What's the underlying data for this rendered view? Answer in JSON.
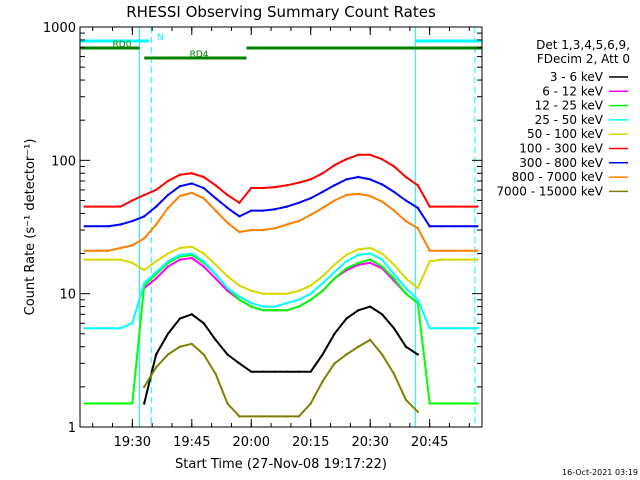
{
  "chart_data": {
    "type": "line",
    "title": "RHESSI Observing Summary Count Rates",
    "xlabel": "Start Time (27-Nov-08 19:17:22)",
    "ylabel": "Count Rate (s⁻¹ detector⁻¹)",
    "yscale": "log",
    "ylim": [
      1,
      1000
    ],
    "xlim_minutes": [
      19.28,
      20.97
    ],
    "x_ticks": [
      "19:30",
      "19:45",
      "20:00",
      "20:15",
      "20:30",
      "20:45"
    ],
    "x_tick_values": [
      19.5,
      19.75,
      20.0,
      20.25,
      20.5,
      20.75
    ],
    "y_ticks": [
      "1",
      "10",
      "100",
      "1000"
    ],
    "y_tick_values": [
      1,
      10,
      100,
      1000
    ],
    "legend_position": "right",
    "legend_header": [
      "Det 1,3,4,5,6,9,",
      "FDecim 2, Att 0"
    ],
    "footer_date": "16-Oct-2021 03:19",
    "grid": false,
    "x": [
      19.3,
      19.35,
      19.4,
      19.45,
      19.5,
      19.55,
      19.6,
      19.65,
      19.7,
      19.75,
      19.8,
      19.85,
      19.9,
      19.95,
      20.0,
      20.05,
      20.1,
      20.15,
      20.2,
      20.25,
      20.3,
      20.35,
      20.4,
      20.45,
      20.5,
      20.55,
      20.6,
      20.65,
      20.7,
      20.75,
      20.8,
      20.85,
      20.9,
      20.95
    ],
    "series": [
      {
        "name": "3 - 6 keV",
        "color": "#000000",
        "values": [
          null,
          null,
          null,
          null,
          null,
          1.5,
          3.5,
          5,
          6.5,
          7,
          6,
          4.5,
          3.5,
          3,
          2.6,
          2.6,
          2.6,
          2.6,
          2.6,
          2.6,
          3.5,
          5,
          6.5,
          7.5,
          8,
          7,
          5.5,
          4,
          3.5,
          null,
          null,
          null,
          null,
          null
        ]
      },
      {
        "name": "6 - 12 keV",
        "color": "#ff00ff",
        "values": [
          null,
          null,
          null,
          null,
          null,
          11,
          13,
          16,
          18,
          18.5,
          16,
          13,
          10.5,
          9,
          8,
          7.5,
          7.5,
          7.5,
          8,
          9,
          10.5,
          13,
          15,
          16.5,
          17,
          15.5,
          12.5,
          10,
          8.5,
          null,
          null,
          null,
          null,
          null
        ]
      },
      {
        "name": "12 - 25 keV",
        "color": "#00ff00",
        "values": [
          1.5,
          1.5,
          1.5,
          1.5,
          1.5,
          11.5,
          14,
          17,
          19,
          19.5,
          17,
          14,
          11,
          9,
          8,
          7.5,
          7.5,
          7.5,
          8,
          9,
          10.5,
          13,
          15.5,
          17,
          18,
          16,
          13,
          10,
          8.5,
          1.5,
          1.5,
          1.5,
          1.5,
          1.5
        ]
      },
      {
        "name": "25 - 50 keV",
        "color": "#00ffff",
        "values": [
          5.5,
          5.5,
          5.5,
          5.5,
          6,
          12,
          14.5,
          17.5,
          19.5,
          20,
          17.5,
          14,
          11,
          9.5,
          8.5,
          8,
          8,
          8.5,
          9,
          10,
          12,
          14.5,
          17.5,
          19.5,
          20,
          18,
          14,
          11,
          9,
          5.5,
          5.5,
          5.5,
          5.5,
          5.5
        ]
      },
      {
        "name": "50 - 100 keV",
        "color": "#d8d800",
        "values": [
          18,
          18,
          18,
          18,
          17,
          15,
          17.5,
          20,
          22,
          22.5,
          20,
          16.5,
          13.5,
          11.5,
          10.5,
          10,
          10,
          10,
          10.5,
          11.5,
          13.5,
          16.5,
          19.5,
          21.5,
          22,
          20,
          16.5,
          13,
          11,
          17.5,
          18,
          18,
          18,
          18
        ]
      },
      {
        "name": "100 - 300 keV",
        "color": "#ff0000",
        "values": [
          45,
          45,
          45,
          45,
          50,
          55,
          60,
          70,
          78,
          80,
          75,
          65,
          55,
          48,
          62,
          62,
          63,
          65,
          68,
          72,
          80,
          92,
          102,
          110,
          110,
          102,
          90,
          75,
          65,
          45,
          45,
          45,
          45,
          45
        ]
      },
      {
        "name": "300 - 800 keV",
        "color": "#0000ff",
        "values": [
          32,
          32,
          32,
          33,
          35,
          38,
          45,
          55,
          64,
          67,
          62,
          52,
          44,
          38,
          42,
          42,
          43,
          45,
          48,
          52,
          58,
          65,
          72,
          75,
          72,
          66,
          58,
          50,
          44,
          32,
          32,
          32,
          32,
          32
        ]
      },
      {
        "name": "800 - 7000 keV",
        "color": "#ff8000",
        "values": [
          21,
          21,
          21,
          22,
          23,
          26,
          33,
          44,
          54,
          57,
          52,
          42,
          34,
          29,
          30,
          30,
          31,
          33,
          35,
          39,
          44,
          50,
          55,
          56,
          54,
          49,
          42,
          35,
          31,
          21,
          21,
          21,
          21,
          21
        ]
      },
      {
        "name": "7000 - 15000 keV",
        "color": "#808000",
        "values": [
          null,
          null,
          null,
          null,
          null,
          2,
          2.8,
          3.5,
          4,
          4.2,
          3.5,
          2.5,
          1.5,
          1.2,
          1.2,
          1.2,
          1.2,
          1.2,
          1.2,
          1.5,
          2.2,
          3,
          3.5,
          4,
          4.5,
          3.5,
          2.5,
          1.6,
          1.3,
          null,
          null,
          null,
          null,
          null
        ]
      }
    ],
    "flag_bars": [
      {
        "label": "N",
        "color": "#00ffff",
        "segments": [
          [
            19.28,
            19.57
          ],
          [
            20.69,
            20.97
          ]
        ]
      },
      {
        "label": "RD0",
        "color": "#008000",
        "segments": [
          [
            19.28,
            19.53
          ],
          [
            19.98,
            20.97
          ]
        ]
      },
      {
        "label": "RD4",
        "color": "#008000",
        "segments": [
          [
            19.55,
            19.98
          ]
        ]
      }
    ],
    "vertical_lines": [
      {
        "x": 19.53,
        "color": "#00ffff",
        "style": "solid"
      },
      {
        "x": 19.58,
        "color": "#00ffff",
        "style": "dashed"
      },
      {
        "x": 20.69,
        "color": "#00ffff",
        "style": "solid"
      },
      {
        "x": 20.94,
        "color": "#00ffff",
        "style": "dashed"
      }
    ]
  }
}
